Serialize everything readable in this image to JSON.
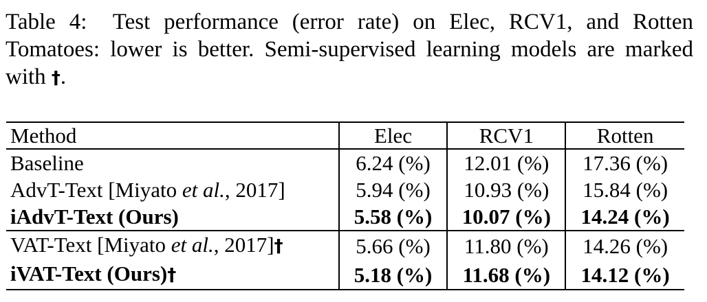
{
  "caption": {
    "label": "Table 4:",
    "text": "Test performance (error rate) on Elec, RCV1, and Rotten Tomatoes: lower is better. Semi-supervised learning models are marked with",
    "dagger": "†",
    "end": "."
  },
  "table": {
    "headers": [
      "Method",
      "Elec",
      "RCV1",
      "Rotten"
    ],
    "rows": [
      {
        "method": "Baseline",
        "method_italic": "",
        "method_suffix": "",
        "dagger": "",
        "elec": "6.24 (%)",
        "rcv1": "12.01 (%)",
        "rotten": "17.36 (%)"
      },
      {
        "method": "AdvT-Text [Miyato ",
        "method_italic": "et al.",
        "method_suffix": ", 2017]",
        "dagger": "",
        "elec": "5.94 (%)",
        "rcv1": "10.93 (%)",
        "rotten": "15.84 (%)"
      },
      {
        "method": "iAdvT-Text (Ours)",
        "method_italic": "",
        "method_suffix": "",
        "dagger": "",
        "elec": "5.58 (%)",
        "rcv1": "10.07 (%)",
        "rotten": "14.24 (%)"
      },
      {
        "method": "VAT-Text [Miyato ",
        "method_italic": "et al.",
        "method_suffix": ", 2017]",
        "dagger": "†",
        "elec": "5.66 (%)",
        "rcv1": "11.80 (%)",
        "rotten": "14.26 (%)"
      },
      {
        "method": "iVAT-Text (Ours)",
        "method_italic": "",
        "method_suffix": "",
        "dagger": "†",
        "elec": "5.18 (%)",
        "rcv1": "11.68 (%)",
        "rotten": "14.12 (%)"
      }
    ]
  }
}
